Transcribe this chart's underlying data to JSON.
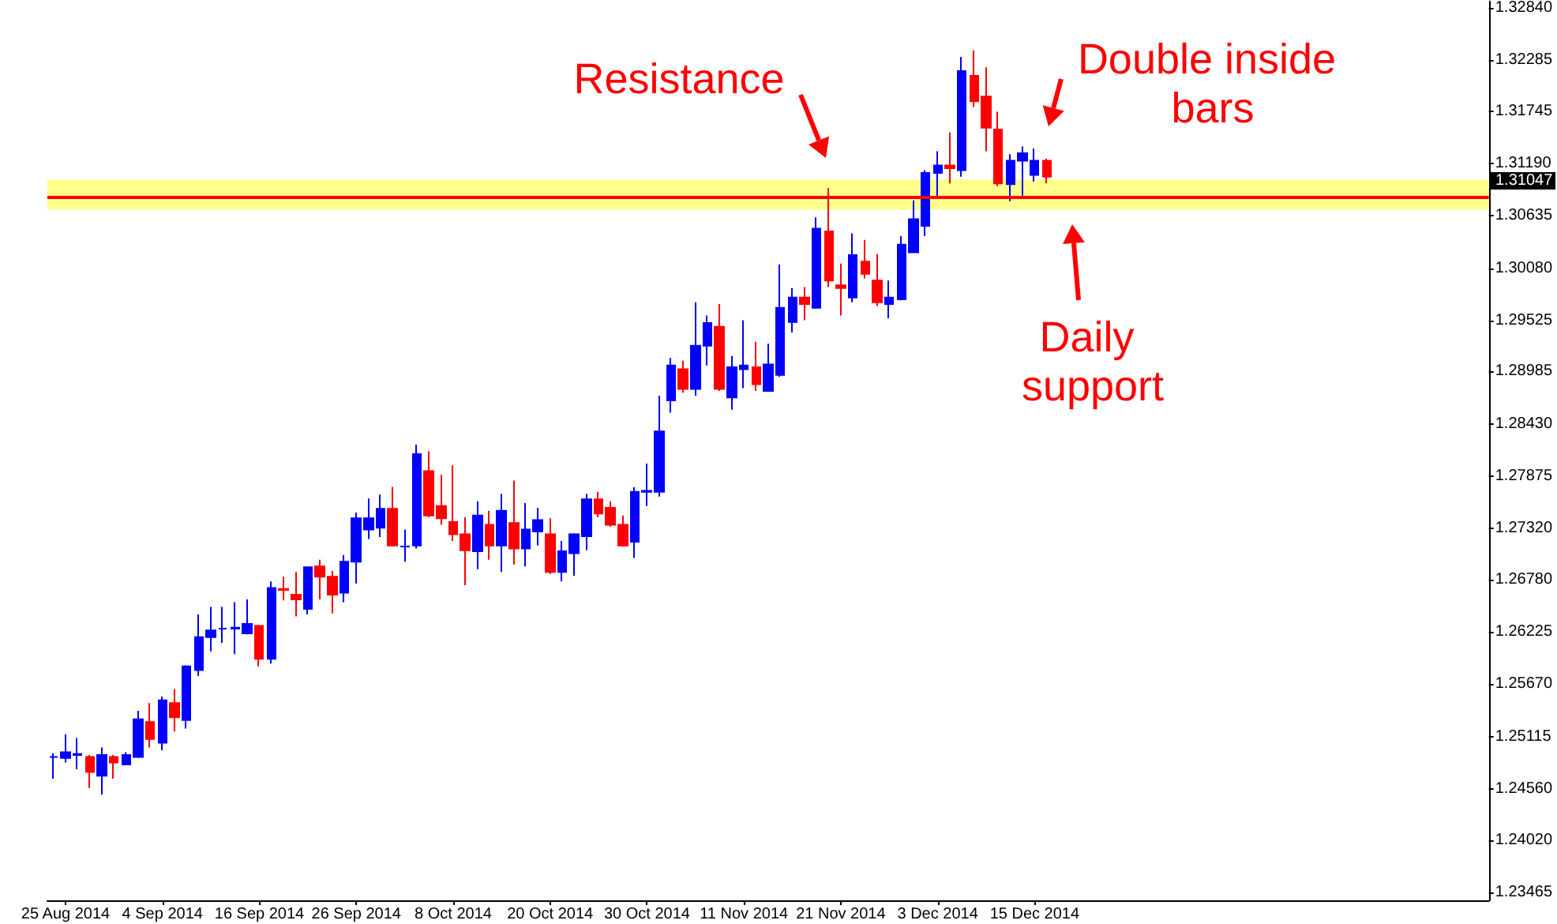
{
  "chart_data": {
    "type": "candlestick",
    "categories": [
      null,
      "25 Aug 2014",
      null,
      null,
      null,
      null,
      null,
      null,
      null,
      "4 Sep 2014",
      null,
      null,
      null,
      null,
      null,
      null,
      null,
      "16 Sep 2014",
      null,
      null,
      null,
      null,
      null,
      null,
      null,
      "26 Sep 2014",
      null,
      null,
      null,
      null,
      null,
      null,
      null,
      "8 Oct 2014",
      null,
      null,
      null,
      null,
      null,
      null,
      null,
      "20 Oct 2014",
      null,
      null,
      null,
      null,
      null,
      null,
      null,
      "30 Oct 2014",
      null,
      null,
      null,
      null,
      null,
      null,
      null,
      "11 Nov 2014",
      null,
      null,
      null,
      null,
      null,
      null,
      null,
      "21 Nov 2014",
      null,
      null,
      null,
      null,
      null,
      null,
      null,
      "3 Dec 2014",
      null,
      null,
      null,
      null,
      null,
      null,
      null,
      "15 Dec 2014",
      null,
      null,
      null,
      null,
      null,
      null,
      null,
      null,
      null,
      null,
      null,
      null,
      null,
      null,
      null,
      null,
      null,
      null,
      null,
      null,
      null,
      null,
      null,
      null,
      null,
      null,
      null,
      null,
      null,
      null,
      null,
      null,
      null,
      null,
      null,
      null,
      null
    ],
    "ohlc": [
      [
        1.249,
        1.2494,
        1.2467,
        1.249
      ],
      [
        1.2489,
        1.2514,
        1.2484,
        1.2495
      ],
      [
        1.2492,
        1.251,
        1.2477,
        1.2493
      ],
      [
        1.249,
        1.2492,
        1.2457,
        1.2474
      ],
      [
        1.247,
        1.25,
        1.245,
        1.2492
      ],
      [
        1.249,
        1.2492,
        1.2467,
        1.2484
      ],
      [
        1.2482,
        1.2495,
        1.2482,
        1.2492
      ],
      [
        1.249,
        1.2539,
        1.2489,
        1.253
      ],
      [
        1.2527,
        1.2547,
        1.25,
        1.2509
      ],
      [
        1.2505,
        1.2554,
        1.2497,
        1.255
      ],
      [
        1.2547,
        1.2562,
        1.2517,
        1.2532
      ],
      [
        1.2529,
        1.2587,
        1.252,
        1.2586
      ],
      [
        1.2582,
        1.2641,
        1.2576,
        1.2617
      ],
      [
        1.2617,
        1.2649,
        1.2602,
        1.2624
      ],
      [
        1.2626,
        1.2649,
        1.2611,
        1.2626
      ],
      [
        1.2626,
        1.2654,
        1.2599,
        1.2627
      ],
      [
        1.2621,
        1.2657,
        1.262,
        1.2631
      ],
      [
        1.2629,
        1.263,
        1.2586,
        1.2594
      ],
      [
        1.2594,
        1.2676,
        1.2589,
        1.2669
      ],
      [
        1.2668,
        1.2681,
        1.2656,
        1.2667
      ],
      [
        1.2662,
        1.2686,
        1.2639,
        1.2657
      ],
      [
        1.2647,
        1.2692,
        1.2641,
        1.2691
      ],
      [
        1.2692,
        1.2699,
        1.2657,
        1.2681
      ],
      [
        1.2681,
        1.2687,
        1.2642,
        1.2662
      ],
      [
        1.2664,
        1.2704,
        1.2654,
        1.2697
      ],
      [
        1.2697,
        1.2749,
        1.2674,
        1.2743
      ],
      [
        1.2731,
        1.2764,
        1.2721,
        1.2743
      ],
      [
        1.2733,
        1.2768,
        1.2723,
        1.2753
      ],
      [
        1.2753,
        1.2776,
        1.2713,
        1.2714
      ],
      [
        1.2713,
        1.2731,
        1.2697,
        1.2713
      ],
      [
        1.2714,
        1.2821,
        1.2711,
        1.2811
      ],
      [
        1.2793,
        1.2814,
        1.2744,
        1.2746
      ],
      [
        1.2756,
        1.2789,
        1.2736,
        1.2743
      ],
      [
        1.2739,
        1.2799,
        1.2719,
        1.2726
      ],
      [
        1.2726,
        1.2744,
        1.2672,
        1.2709
      ],
      [
        1.2708,
        1.2761,
        1.2689,
        1.2746
      ],
      [
        1.2736,
        1.2751,
        1.2699,
        1.2714
      ],
      [
        1.2714,
        1.2769,
        1.2686,
        1.2751
      ],
      [
        1.2738,
        1.2783,
        1.2694,
        1.2711
      ],
      [
        1.2711,
        1.2759,
        1.2692,
        1.2731
      ],
      [
        1.2729,
        1.2754,
        1.2714,
        1.2741
      ],
      [
        1.2726,
        1.2743,
        1.2684,
        1.2686
      ],
      [
        1.2686,
        1.2719,
        1.2676,
        1.2708
      ],
      [
        1.2706,
        1.2727,
        1.2682,
        1.2726
      ],
      [
        1.2724,
        1.2769,
        1.2709,
        1.2763
      ],
      [
        1.2763,
        1.2771,
        1.2744,
        1.2748
      ],
      [
        1.2754,
        1.2761,
        1.2734,
        1.2736
      ],
      [
        1.2736,
        1.2746,
        1.2713,
        1.2714
      ],
      [
        1.2718,
        1.2776,
        1.2701,
        1.2771
      ],
      [
        1.2771,
        1.2801,
        1.2756,
        1.2772
      ],
      [
        1.2771,
        1.2873,
        1.2766,
        1.2835
      ],
      [
        1.2868,
        1.2913,
        1.2855,
        1.2905
      ],
      [
        1.2901,
        1.291,
        1.2876,
        1.288
      ],
      [
        1.288,
        1.2972,
        1.2873,
        1.2926
      ],
      [
        1.2926,
        1.2958,
        1.2905,
        1.295
      ],
      [
        1.2946,
        1.297,
        1.2878,
        1.288
      ],
      [
        1.2871,
        1.2915,
        1.2858,
        1.2903
      ],
      [
        1.2901,
        1.2953,
        1.2881,
        1.2905
      ],
      [
        1.2903,
        1.293,
        1.2878,
        1.2885
      ],
      [
        1.2878,
        1.2928,
        1.2877,
        1.2906
      ],
      [
        1.2895,
        1.3012,
        1.2893,
        1.2966
      ],
      [
        1.2951,
        1.2987,
        1.294,
        1.2977
      ],
      [
        1.2977,
        1.2988,
        1.2953,
        1.297
      ],
      [
        1.2966,
        1.3062,
        1.2965,
        1.305
      ],
      [
        1.3047,
        1.3093,
        1.2988,
        1.2995
      ],
      [
        1.299,
        1.3013,
        1.2958,
        1.2987
      ],
      [
        1.2977,
        1.3045,
        1.2972,
        1.3022
      ],
      [
        1.3015,
        1.3038,
        1.2997,
        1.3002
      ],
      [
        1.2995,
        1.3023,
        1.2968,
        1.2972
      ],
      [
        1.297,
        1.2995,
        1.2955,
        1.2977
      ],
      [
        1.2975,
        1.3042,
        1.2974,
        1.3033
      ],
      [
        1.3025,
        1.308,
        1.3024,
        1.306
      ],
      [
        1.3053,
        1.3112,
        1.3042,
        1.3109
      ],
      [
        1.3109,
        1.3132,
        1.3084,
        1.3117
      ],
      [
        1.3117,
        1.3152,
        1.3098,
        1.3114
      ],
      [
        1.3112,
        1.3232,
        1.3105,
        1.3217
      ],
      [
        1.3212,
        1.3239,
        1.3179,
        1.3185
      ],
      [
        1.319,
        1.3221,
        1.3132,
        1.3157
      ],
      [
        1.3155,
        1.3174,
        1.3095,
        1.3098
      ],
      [
        1.3097,
        1.3129,
        1.3079,
        1.3122
      ],
      [
        1.3122,
        1.3137,
        1.3085,
        1.313
      ],
      [
        1.3107,
        1.3135,
        1.31,
        1.3122
      ],
      [
        1.3122,
        1.3124,
        1.3098,
        1.3105
      ],
      null,
      null,
      null,
      null,
      null,
      null,
      null,
      null,
      null,
      null,
      null,
      null,
      null,
      null,
      null,
      null,
      null,
      null,
      null,
      null,
      null,
      null,
      null,
      null,
      null,
      null,
      null,
      null,
      null,
      null,
      null,
      null,
      null,
      null,
      null,
      null
    ],
    "colors": [
      "#0000ff",
      "#0000ff",
      "#0000ff",
      "#ff0000",
      "#0000ff",
      "#ff0000",
      "#0000ff",
      "#0000ff",
      "#ff0000",
      "#0000ff",
      "#ff0000",
      "#0000ff",
      "#0000ff",
      "#0000ff",
      "#0000ff",
      "#0000ff",
      "#0000ff",
      "#ff0000",
      "#0000ff",
      "#ff0000",
      "#ff0000",
      "#0000ff",
      "#ff0000",
      "#ff0000",
      "#0000ff",
      "#0000ff",
      "#0000ff",
      "#0000ff",
      "#ff0000",
      "#0000ff",
      "#0000ff",
      "#ff0000",
      "#ff0000",
      "#ff0000",
      "#ff0000",
      "#0000ff",
      "#ff0000",
      "#0000ff",
      "#ff0000",
      "#0000ff",
      "#0000ff",
      "#ff0000",
      "#0000ff",
      "#0000ff",
      "#0000ff",
      "#ff0000",
      "#ff0000",
      "#ff0000",
      "#0000ff",
      "#0000ff",
      "#0000ff",
      "#0000ff",
      "#ff0000",
      "#0000ff",
      "#0000ff",
      "#ff0000",
      "#0000ff",
      "#0000ff",
      "#ff0000",
      "#0000ff",
      "#0000ff",
      "#0000ff",
      "#ff0000",
      "#0000ff",
      "#ff0000",
      "#ff0000",
      "#0000ff",
      "#ff0000",
      "#ff0000",
      "#0000ff",
      "#0000ff",
      "#0000ff",
      "#0000ff",
      "#0000ff",
      "#ff0000",
      "#0000ff",
      "#ff0000",
      "#ff0000",
      "#ff0000",
      "#0000ff",
      "#0000ff",
      "#0000ff",
      "#ff0000",
      null,
      null,
      null,
      null,
      null,
      null,
      null,
      null,
      null,
      null,
      null,
      null,
      null,
      null,
      null,
      null,
      null,
      null,
      null,
      null,
      null,
      null,
      null,
      null,
      null,
      null,
      null,
      null,
      null,
      null,
      null,
      null,
      null,
      null,
      null,
      null
    ],
    "ylim": [
      1.2338,
      1.3291
    ],
    "yticks": [
      {
        "value": 1.3284,
        "label": "1.32840"
      },
      1.32285,
      1.31745,
      {
        "value": 1.3119,
        "label": "1.31190"
      },
      1.30635,
      {
        "value": 1.3008,
        "label": "1.30080"
      },
      1.29525,
      1.28985,
      {
        "value": 1.2843,
        "label": "1.28430"
      },
      1.27875,
      {
        "value": 1.2732,
        "label": "1.27320"
      },
      {
        "value": 1.2678,
        "label": "1.26780"
      },
      1.26225,
      {
        "value": 1.2567,
        "label": "1.25670"
      },
      1.25115,
      {
        "value": 1.2456,
        "label": "1.24560"
      },
      {
        "value": 1.2402,
        "label": "1.24020"
      },
      1.23465
    ],
    "grid": false,
    "ref_lines": [
      {
        "axis": "y",
        "value": 1.3084,
        "color": "#ff0000"
      }
    ],
    "bands": [
      {
        "axis": "y",
        "from": 1.307,
        "to": 1.3102,
        "color": "#ffff66"
      }
    ],
    "annotations": [
      "Resistance",
      "Double inside bars",
      "Daily support",
      "1.31047"
    ]
  }
}
